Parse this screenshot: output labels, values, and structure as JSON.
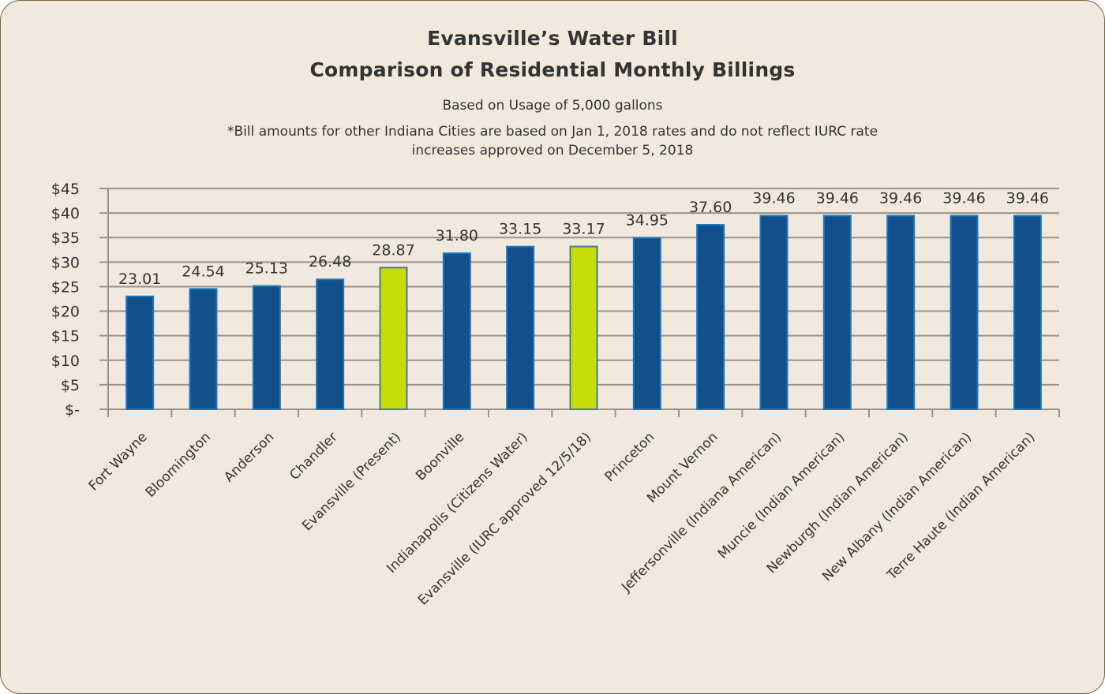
{
  "chart_data": {
    "type": "bar",
    "title": "Evansville’s Water Bill",
    "subtitle": "Comparison of Residential Monthly Billings",
    "notes": [
      "Based on Usage of 5,000 gallons",
      "*Bill amounts for other Indiana Cities are based on Jan 1, 2018 rates and do not reflect IURC rate",
      "increases approved on December 5, 2018"
    ],
    "xlabel": "",
    "ylabel": "",
    "ylim": [
      0,
      45
    ],
    "yticks": [
      0,
      5,
      10,
      15,
      20,
      25,
      30,
      35,
      40,
      45
    ],
    "ytick_labels": [
      "$-",
      "$5",
      "$10",
      "$15",
      "$20",
      "$25",
      "$30",
      "$35",
      "$40",
      "$45"
    ],
    "grid": true,
    "legend": "none",
    "categories": [
      "Fort Wayne",
      "Bloomington",
      "Anderson",
      "Chandler",
      "Evansville (Present)",
      "Boonville",
      "Indianapolis (Citizens Water)",
      "Evansville (IURC approved 12/5/18)",
      "Princeton",
      "Mount Vernon",
      "Jeffersonville (Indiana American)",
      "Muncie (Indian American)",
      "Newburgh (Indian American)",
      "New Albany (Indian American)",
      "Terre Haute (Indian American)"
    ],
    "values": [
      23.01,
      24.54,
      25.13,
      26.48,
      28.87,
      31.8,
      33.15,
      33.17,
      34.95,
      37.6,
      39.46,
      39.46,
      39.46,
      39.46,
      39.46
    ],
    "data_labels": [
      "23.01",
      "24.54",
      "25.13",
      "26.48",
      "28.87",
      "31.80",
      "33.15",
      "33.17",
      "34.95",
      "37.60",
      "39.46",
      "39.46",
      "39.46",
      "39.46",
      "39.46"
    ],
    "highlighted": [
      false,
      false,
      false,
      false,
      true,
      false,
      false,
      true,
      false,
      false,
      false,
      false,
      false,
      false,
      false
    ],
    "colors": {
      "bar": "#134f8b",
      "bar_edge": "#1a7ac0",
      "highlight": "#c8dc0a",
      "highlight_edge": "#4a7a9a",
      "grid": "#9c9189",
      "text": "#333333",
      "background": "#f2e9de"
    }
  }
}
